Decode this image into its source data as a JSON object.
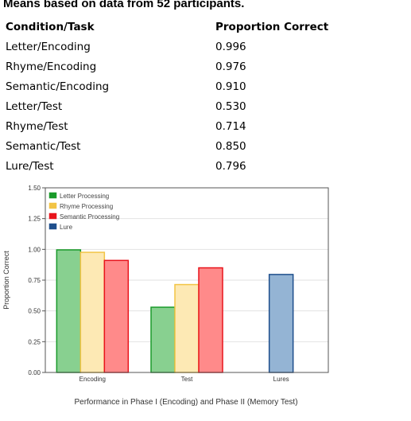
{
  "heading": "Means based on data from 52 participants.",
  "table": {
    "headers": [
      "Condition/Task",
      "Proportion Correct"
    ],
    "rows": [
      [
        "Letter/Encoding",
        "0.996"
      ],
      [
        "Rhyme/Encoding",
        "0.976"
      ],
      [
        "Semantic/Encoding",
        "0.910"
      ],
      [
        "Letter/Test",
        "0.530"
      ],
      [
        "Rhyme/Test",
        "0.714"
      ],
      [
        "Semantic/Test",
        "0.850"
      ],
      [
        "Lure/Test",
        "0.796"
      ]
    ]
  },
  "chart_data": {
    "type": "bar",
    "categories": [
      "Encoding",
      "Test",
      "Lures"
    ],
    "series": [
      {
        "name": "Letter Processing",
        "values": [
          0.996,
          0.53,
          null
        ],
        "fill": "#88d090",
        "stroke": "#1a9a2a"
      },
      {
        "name": "Rhyme Processing",
        "values": [
          0.976,
          0.714,
          null
        ],
        "fill": "#fde9b4",
        "stroke": "#f2c445"
      },
      {
        "name": "Semantic Processing",
        "values": [
          0.91,
          0.85,
          null
        ],
        "fill": "#ff8a8a",
        "stroke": "#e8141c"
      },
      {
        "name": "Lure",
        "values": [
          null,
          null,
          0.796
        ],
        "fill": "#94b4d4",
        "stroke": "#1e4e8c"
      }
    ],
    "yticks": [
      "0.00",
      "0.25",
      "0.50",
      "0.75",
      "1.00",
      "1.25",
      "1.50"
    ],
    "ylim": [
      0,
      1.5
    ],
    "xlabel": "Performance in Phase I (Encoding) and Phase II (Memory Test)",
    "ylabel": "Proportion Correct",
    "legend": "top-left inside",
    "grid": true
  }
}
